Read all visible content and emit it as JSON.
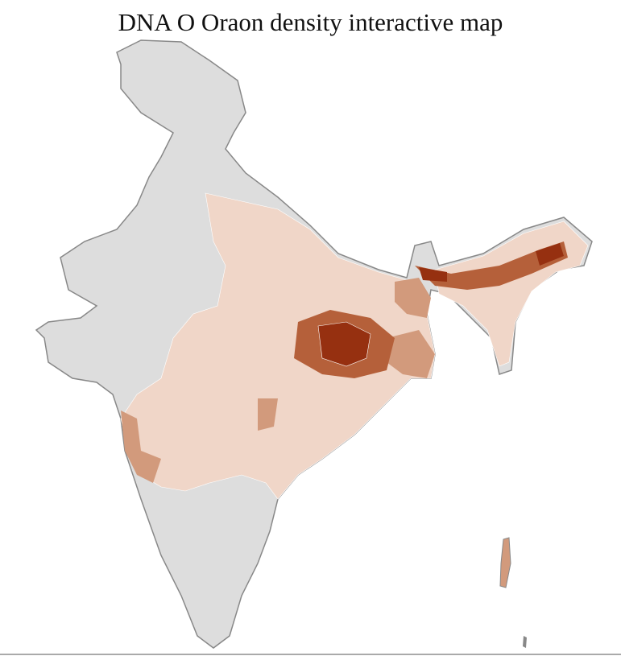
{
  "title": "DNA O Oraon density interactive map",
  "colors": {
    "no_data": "#dddddd",
    "border": "#888888",
    "district_lines": "#ffffff",
    "low": "#f0d6c8",
    "medium": "#d29a7c",
    "high": "#b5603a",
    "very_high": "#963010"
  }
}
